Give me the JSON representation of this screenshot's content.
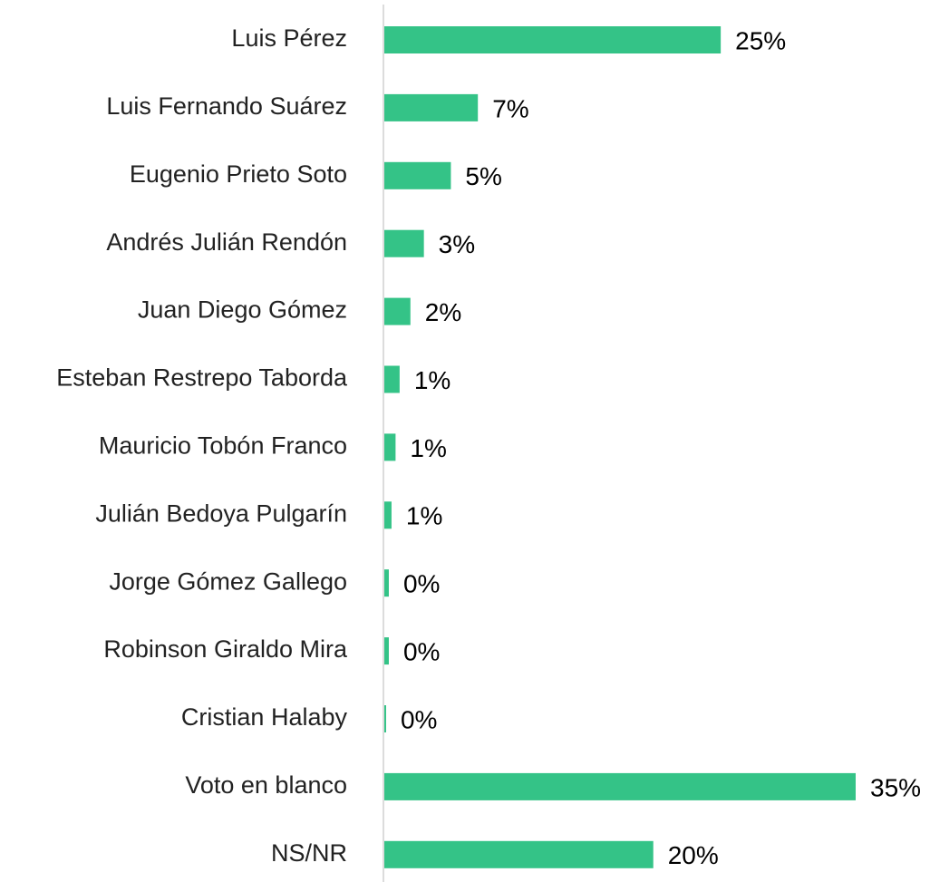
{
  "chart_data": {
    "type": "barh",
    "categories": [
      "Luis Pérez",
      "Luis Fernando Suárez",
      "Eugenio Prieto Soto",
      "Andrés Julián Rendón",
      "Juan Diego Gómez",
      "Esteban Restrepo Taborda",
      "Mauricio Tobón Franco",
      "Julián Bedoya Pulgarín",
      "Jorge Gómez Gallego",
      "Robinson Giraldo Mira",
      "Cristian Halaby",
      "Voto en blanco",
      "NS/NR"
    ],
    "values": [
      25,
      7,
      5,
      3,
      2,
      1.2,
      0.9,
      0.6,
      0.4,
      0.4,
      0.2,
      35,
      20
    ],
    "value_labels": [
      "25%",
      "7%",
      "5%",
      "3%",
      "2%",
      "1%",
      "1%",
      "1%",
      "0%",
      "0%",
      "0%",
      "35%",
      "20%"
    ],
    "color": "#34c387",
    "xlim": [
      0,
      35
    ]
  }
}
